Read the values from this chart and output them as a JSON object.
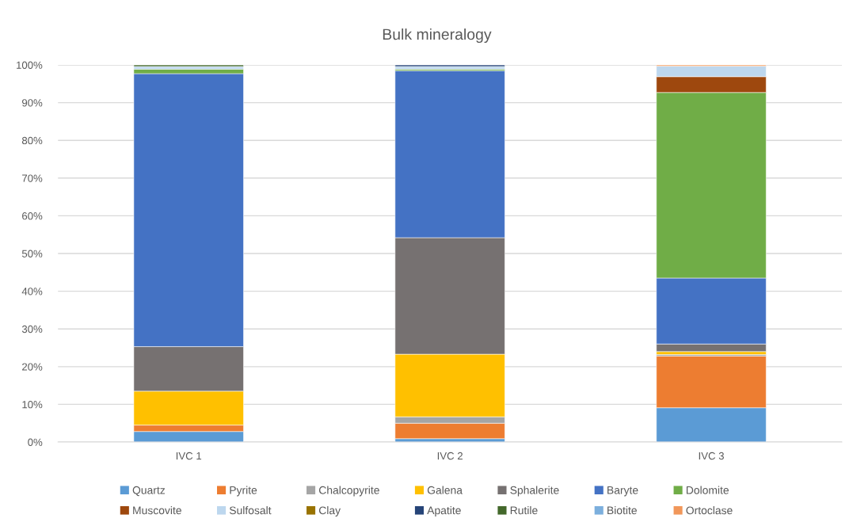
{
  "chart_data": {
    "type": "bar",
    "stacked": true,
    "title": "Bulk mineralogy",
    "categories": [
      "IVC 1",
      "IVC 2",
      "IVC 3"
    ],
    "series": [
      {
        "name": "Quartz",
        "color": "#5b9bd5",
        "values": [
          2.8,
          0.9,
          9.1
        ]
      },
      {
        "name": "Pyrite",
        "color": "#ed7d31",
        "values": [
          1.7,
          4.1,
          13.7
        ]
      },
      {
        "name": "Chalcopyrite",
        "color": "#a5a5a5",
        "values": [
          null,
          1.7,
          0.4
        ]
      },
      {
        "name": "Galena",
        "color": "#ffc000",
        "values": [
          9.0,
          16.6,
          0.8
        ]
      },
      {
        "name": "Sphalerite",
        "color": "#767171",
        "values": [
          11.8,
          30.9,
          2.0
        ]
      },
      {
        "name": "Baryte",
        "color": "#4472c4",
        "values": [
          72.4,
          44.3,
          17.5
        ]
      },
      {
        "name": "Dolomite",
        "color": "#70ad47",
        "values": [
          1.2,
          0.4,
          49.2
        ]
      },
      {
        "name": "Muscovite",
        "color": "#9e480e",
        "values": [
          null,
          null,
          4.2
        ]
      },
      {
        "name": "Sulfosalt",
        "color": "#bdd7ee",
        "values": [
          0.7,
          0.7,
          2.8
        ]
      },
      {
        "name": "Clay",
        "color": "#997300",
        "values": [
          null,
          null,
          null
        ]
      },
      {
        "name": "Apatite",
        "color": "#264478",
        "values": [
          null,
          0.4,
          null
        ]
      },
      {
        "name": "Rutile",
        "color": "#43682b",
        "values": [
          0.4,
          null,
          null
        ]
      },
      {
        "name": "Biotite",
        "color": "#7cafdd",
        "values": [
          null,
          null,
          null
        ]
      },
      {
        "name": "Ortoclase",
        "color": "#f1975a",
        "values": [
          null,
          null,
          0.3
        ]
      }
    ],
    "ylim": [
      0,
      100
    ],
    "yticks": [
      {
        "value": 0,
        "label": "0%"
      },
      {
        "value": 10,
        "label": "10%"
      },
      {
        "value": 20,
        "label": "20%"
      },
      {
        "value": 30,
        "label": "30%"
      },
      {
        "value": 40,
        "label": "40%"
      },
      {
        "value": 50,
        "label": "50%"
      },
      {
        "value": 60,
        "label": "60%"
      },
      {
        "value": 70,
        "label": "70%"
      },
      {
        "value": 80,
        "label": "80%"
      },
      {
        "value": 90,
        "label": "90%"
      },
      {
        "value": 100,
        "label": "100%"
      }
    ],
    "grid": "y",
    "legend": "bottom"
  }
}
